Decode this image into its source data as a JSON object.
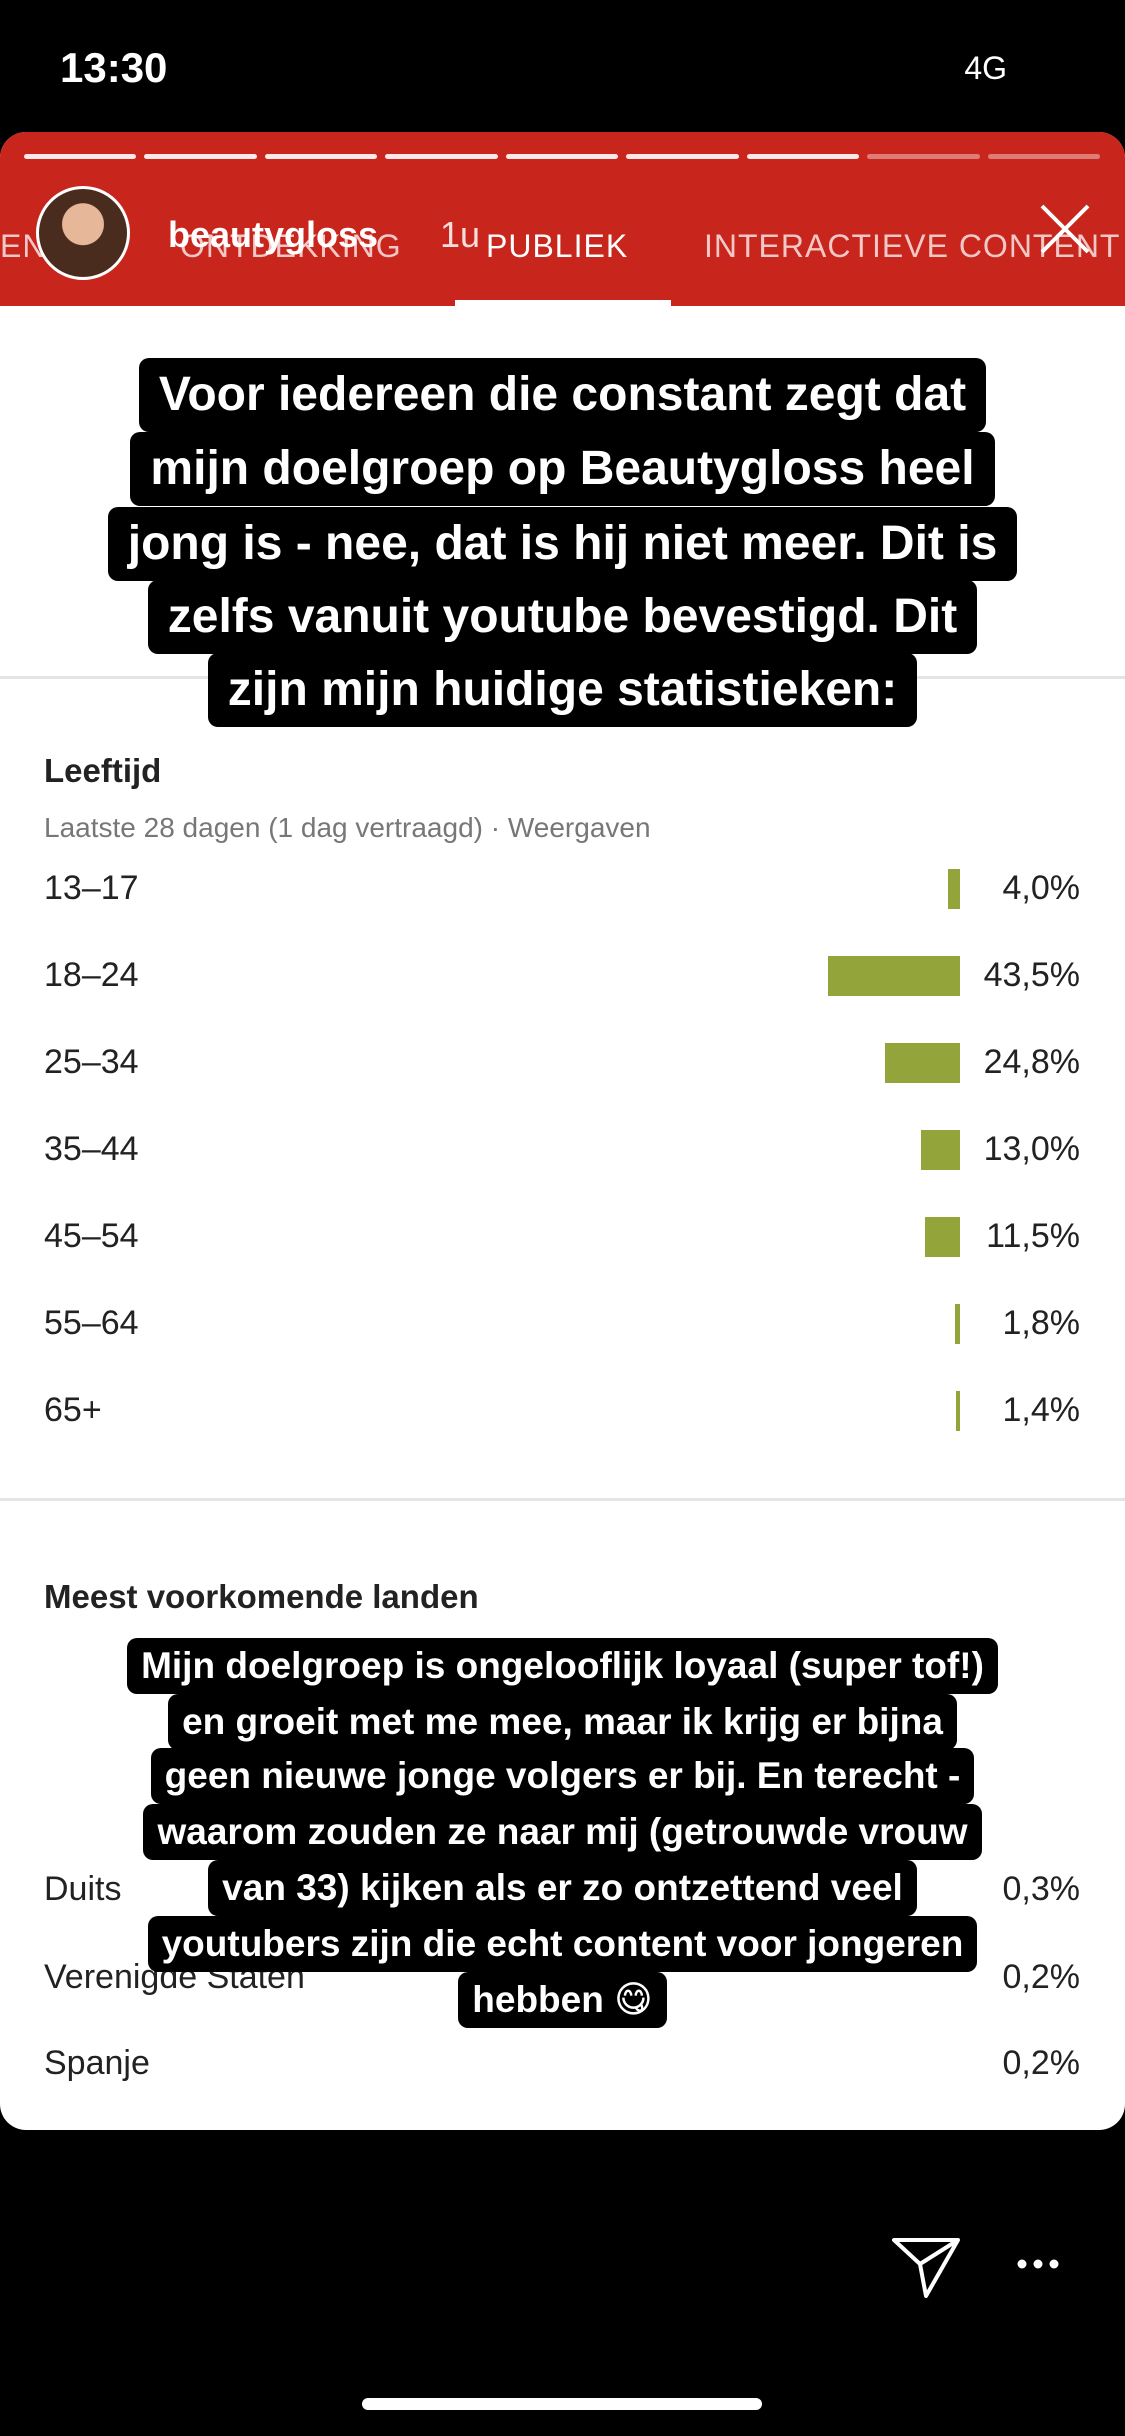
{
  "status": {
    "time": "13:30",
    "network": "4G"
  },
  "story": {
    "username": "beautygloss",
    "age": "1u"
  },
  "tabs": [
    "EN",
    "ONTDEKKING",
    "PUBLIEK",
    "INTERACTIEVE CONTENT"
  ],
  "caption_top": [
    "Voor iedereen die constant zegt dat",
    "mijn doelgroep op Beautygloss heel",
    "jong is - nee, dat is hij niet meer. Dit is",
    "zelfs vanuit youtube bevestigd. Dit",
    "zijn mijn huidige statistieken:"
  ],
  "age_chart": {
    "type": "bar",
    "title": "Leeftijd",
    "subtitle": "Laatste 28 dagen (1 dag vertraagd) · Weergaven",
    "categories": [
      "13–17",
      "18–24",
      "25–34",
      "35–44",
      "45–54",
      "55–64",
      "65+"
    ],
    "values": [
      4.0,
      43.5,
      24.8,
      13.0,
      11.5,
      1.8,
      1.4
    ],
    "value_labels": [
      "4,0%",
      "43,5%",
      "24,8%",
      "13,0%",
      "11,5%",
      "1,8%",
      "1,4%"
    ],
    "color": "#93a53a"
  },
  "countries": {
    "title": "Meest voorkomende landen",
    "rows": [
      [
        "Duits",
        "0,3%"
      ],
      [
        "Verenigde Staten",
        "0,2%"
      ],
      [
        "Spanje",
        "0,2%"
      ]
    ]
  },
  "caption_bottom": [
    "Mijn doelgroep is ongelooflijk loyaal (super tof!)",
    "en groeit met me mee, maar ik krijg er bijna",
    "geen nieuwe jonge volgers er bij. En terecht -",
    "waarom zouden ze naar mij (getrouwde vrouw",
    "van 33) kijken als er zo ontzettend veel",
    "youtubers zijn die echt content voor jongeren",
    "hebben 😋"
  ]
}
